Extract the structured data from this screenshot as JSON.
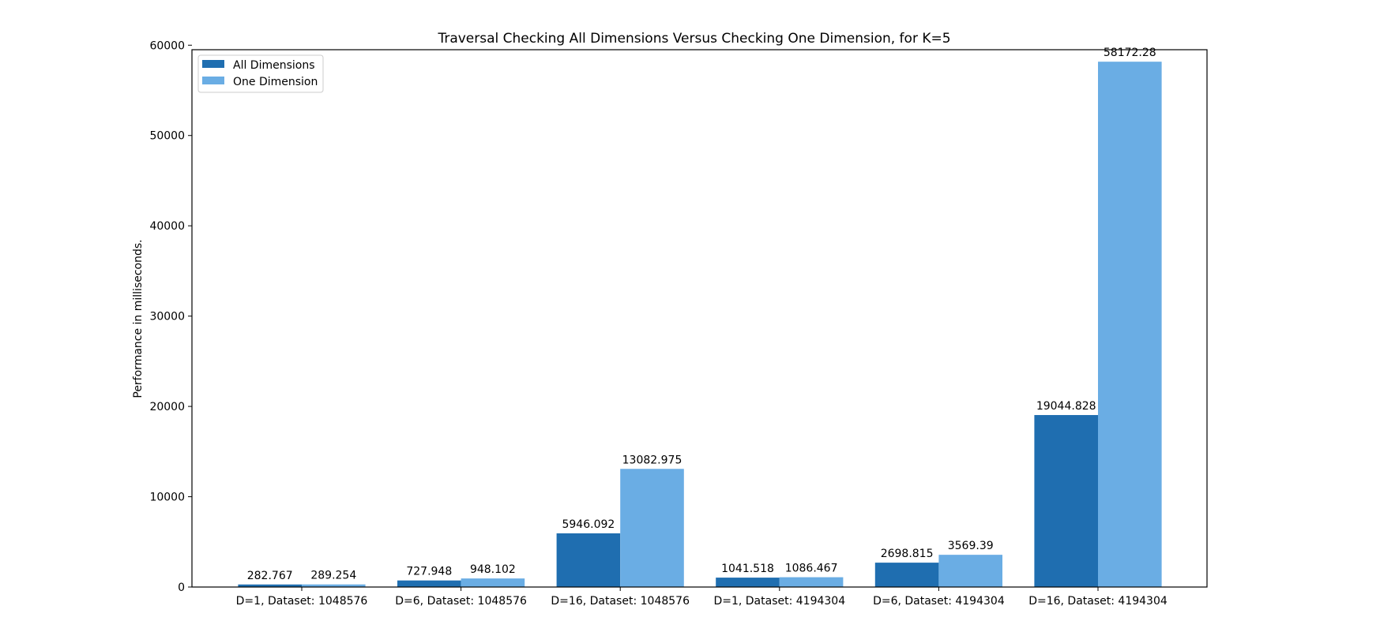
{
  "chart_data": {
    "type": "bar",
    "title": "Traversal Checking All Dimensions Versus Checking One Dimension, for K=5",
    "xlabel": "",
    "ylabel": "Performance in milliseconds.",
    "categories": [
      "D=1, Dataset: 1048576",
      "D=6, Dataset: 1048576",
      "D=16, Dataset: 1048576",
      "D=1, Dataset: 4194304",
      "D=6, Dataset: 4194304",
      "D=16, Dataset: 4194304"
    ],
    "series": [
      {
        "name": "All Dimensions",
        "color": "#1f6eb0",
        "values": [
          282.767,
          727.948,
          5946.092,
          1041.518,
          2698.815,
          19044.828
        ],
        "labels": [
          "282.767",
          "727.948",
          "5946.092",
          "1041.518",
          "2698.815",
          "19044.828"
        ]
      },
      {
        "name": "One Dimension",
        "color": "#6aade4",
        "values": [
          289.254,
          948.102,
          13082.975,
          1086.467,
          3569.39,
          58172.28
        ],
        "labels": [
          "289.254",
          "948.102",
          "13082.975",
          "1086.467",
          "3569.39",
          "58172.28"
        ]
      }
    ],
    "yticks": [
      0,
      10000,
      20000,
      30000,
      40000,
      50000,
      60000
    ],
    "ylim": [
      0,
      59500
    ],
    "grid": false,
    "legend_position": "top-left"
  }
}
